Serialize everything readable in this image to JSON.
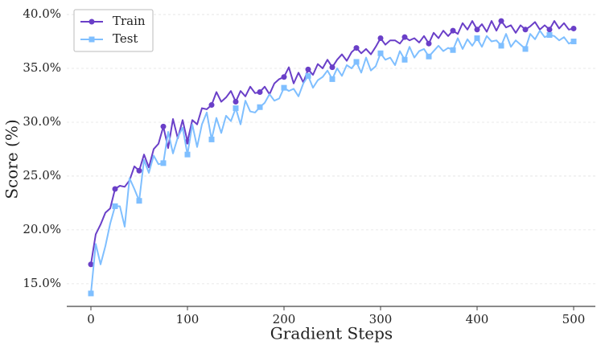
{
  "chart_data": {
    "type": "line",
    "x_label": "Gradient Steps",
    "y_label": "Score (%)",
    "x": [
      0,
      5,
      10,
      15,
      20,
      25,
      30,
      35,
      40,
      45,
      50,
      55,
      60,
      65,
      70,
      75,
      80,
      85,
      90,
      95,
      100,
      105,
      110,
      115,
      120,
      125,
      130,
      135,
      140,
      145,
      150,
      155,
      160,
      165,
      170,
      175,
      180,
      185,
      190,
      195,
      200,
      205,
      210,
      215,
      220,
      225,
      230,
      235,
      240,
      245,
      250,
      255,
      260,
      265,
      270,
      275,
      280,
      285,
      290,
      295,
      300,
      305,
      310,
      315,
      320,
      325,
      330,
      335,
      340,
      345,
      350,
      355,
      360,
      365,
      370,
      375,
      380,
      385,
      390,
      395,
      400,
      405,
      410,
      415,
      420,
      425,
      430,
      435,
      440,
      445,
      450,
      455,
      460,
      465,
      470,
      475,
      480,
      485,
      490,
      495,
      500
    ],
    "series": [
      {
        "name": "Train",
        "color": "#6a3fc8",
        "values": [
          16.8,
          19.6,
          20.5,
          21.6,
          22.0,
          23.8,
          24.1,
          24.0,
          24.6,
          25.9,
          25.5,
          27.0,
          25.8,
          27.5,
          28.0,
          29.6,
          27.6,
          30.3,
          28.5,
          30.2,
          28.2,
          30.2,
          29.8,
          31.3,
          31.2,
          31.6,
          32.8,
          31.9,
          32.3,
          32.9,
          31.9,
          32.9,
          32.4,
          33.3,
          32.7,
          32.8,
          33.3,
          32.6,
          33.6,
          34.0,
          34.2,
          35.1,
          33.6,
          34.6,
          33.7,
          34.9,
          34.4,
          35.4,
          35.0,
          35.8,
          35.1,
          35.8,
          36.3,
          35.7,
          36.5,
          36.9,
          36.4,
          36.8,
          36.3,
          37.0,
          37.8,
          37.2,
          37.6,
          37.6,
          37.3,
          37.9,
          37.6,
          37.8,
          37.4,
          38.0,
          37.3,
          38.3,
          37.8,
          38.5,
          38.0,
          38.5,
          38.2,
          39.2,
          38.6,
          39.4,
          38.6,
          39.1,
          38.4,
          39.4,
          38.5,
          39.4,
          38.8,
          39.0,
          38.3,
          39.0,
          38.6,
          38.9,
          39.3,
          38.6,
          39.0,
          38.6,
          39.4,
          38.7,
          39.2,
          38.6,
          38.7
        ]
      },
      {
        "name": "Test",
        "color": "#7fbfff",
        "values": [
          14.1,
          18.7,
          16.8,
          18.5,
          20.6,
          22.2,
          22.2,
          20.3,
          24.8,
          23.8,
          22.7,
          26.5,
          25.3,
          26.9,
          26.1,
          26.2,
          29.1,
          27.1,
          28.6,
          29.5,
          27.0,
          29.8,
          27.7,
          29.8,
          30.9,
          28.4,
          30.4,
          29.0,
          30.6,
          30.1,
          31.3,
          29.8,
          32.0,
          31.0,
          30.9,
          31.4,
          31.8,
          32.6,
          32.0,
          32.2,
          33.2,
          32.9,
          33.1,
          32.4,
          33.6,
          34.3,
          33.2,
          33.9,
          34.2,
          34.8,
          34.0,
          35.0,
          34.3,
          35.3,
          35.0,
          35.6,
          34.6,
          36.0,
          34.8,
          35.2,
          36.4,
          35.8,
          36.0,
          35.3,
          36.6,
          35.8,
          37.0,
          36.0,
          36.6,
          36.8,
          36.1,
          36.6,
          37.1,
          36.6,
          36.9,
          36.7,
          37.8,
          36.8,
          37.7,
          37.1,
          37.8,
          37.0,
          38.0,
          37.5,
          37.6,
          37.1,
          38.2,
          37.0,
          37.6,
          37.2,
          36.8,
          38.2,
          37.7,
          38.5,
          37.9,
          38.1,
          38.0,
          37.6,
          37.9,
          37.3,
          37.5
        ]
      }
    ],
    "xlim": [
      -25,
      522.5
    ],
    "ylim": [
      12.9,
      40.75
    ],
    "xticks": [
      0,
      100,
      200,
      300,
      400,
      500
    ],
    "yticks": [
      {
        "value": 15,
        "label": "15.0%"
      },
      {
        "value": 20,
        "label": "20.0%"
      },
      {
        "value": 25,
        "label": "25.0%"
      },
      {
        "value": 30,
        "label": "30.0%"
      },
      {
        "value": 35,
        "label": "35.0%"
      },
      {
        "value": 40,
        "label": "40.0%"
      }
    ],
    "grid": true,
    "legend": "upper left"
  }
}
